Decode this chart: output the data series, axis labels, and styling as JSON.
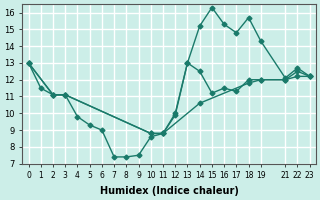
{
  "background_color": "#cceee8",
  "grid_color": "#ffffff",
  "line_color": "#1a7a6a",
  "series1_x": [
    0,
    1,
    2,
    3,
    4,
    5,
    6,
    7,
    8,
    9,
    10,
    11,
    12,
    13,
    14,
    15,
    16,
    17,
    18,
    19,
    21,
    22,
    23
  ],
  "series1_y": [
    13,
    11.5,
    11.1,
    11.1,
    9.8,
    9.3,
    9.0,
    7.4,
    7.4,
    7.5,
    8.6,
    8.8,
    9.9,
    13.0,
    15.2,
    16.3,
    15.3,
    14.8,
    15.7,
    14.3,
    12.1,
    12.7,
    12.2
  ],
  "series2_x": [
    0,
    2,
    3,
    10,
    11,
    12,
    13,
    14,
    15,
    16,
    17,
    18,
    19,
    21,
    22,
    23
  ],
  "series2_y": [
    13,
    11.1,
    11.1,
    8.8,
    8.8,
    10.0,
    13.0,
    12.5,
    11.2,
    11.5,
    11.3,
    12.0,
    12.0,
    12.0,
    12.5,
    12.2
  ],
  "series3_x": [
    0,
    2,
    3,
    10,
    11,
    14,
    18,
    19,
    21,
    22,
    23
  ],
  "series3_y": [
    13,
    11.1,
    11.1,
    8.8,
    8.8,
    10.6,
    11.8,
    12.0,
    12.0,
    12.2,
    12.2
  ],
  "xlabel": "Humidex (Indice chaleur)",
  "ylim": [
    7,
    16.5
  ],
  "xlim": [
    -0.5,
    23.5
  ],
  "yticks": [
    7,
    8,
    9,
    10,
    11,
    12,
    13,
    14,
    15,
    16
  ],
  "xticks": [
    0,
    1,
    2,
    3,
    4,
    5,
    6,
    7,
    8,
    9,
    10,
    11,
    12,
    13,
    14,
    15,
    16,
    17,
    18,
    19,
    21,
    22,
    23
  ],
  "xtick_labels": [
    "0",
    "1",
    "2",
    "3",
    "4",
    "5",
    "6",
    "7",
    "8",
    "9",
    "10",
    "11",
    "12",
    "13",
    "14",
    "15",
    "16",
    "17",
    "18",
    "19",
    "21",
    "22",
    "23"
  ]
}
